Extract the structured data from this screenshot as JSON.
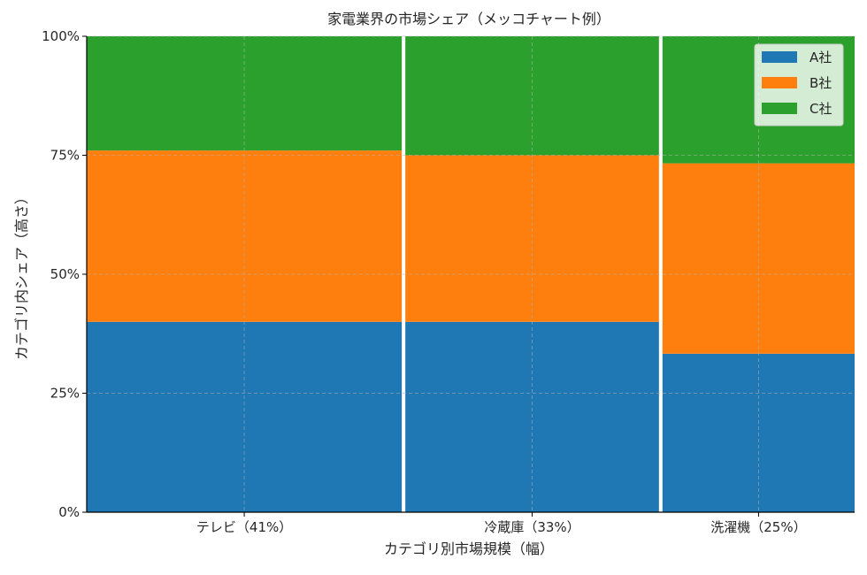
{
  "chart_data": {
    "type": "bar",
    "subtype": "mekko",
    "title": "家電業界の市場シェア（メッコチャート例）",
    "xlabel": "カテゴリ別市場規模（幅）",
    "ylabel": "カテゴリ内シェア（高さ）",
    "ylim": [
      0,
      1
    ],
    "yticks": [
      "0%",
      "25%",
      "50%",
      "75%",
      "100%"
    ],
    "grid": true,
    "legend_position": "top-right",
    "categories": [
      {
        "name": "テレビ",
        "tick_label": "テレビ（41%）",
        "width": 0.41
      },
      {
        "name": "冷蔵庫",
        "tick_label": "冷蔵庫（33%）",
        "width": 0.33
      },
      {
        "name": "洗濯機",
        "tick_label": "洗濯機（25%）",
        "width": 0.25
      }
    ],
    "series": [
      {
        "name": "A社",
        "color": "#1f77b4",
        "values": [
          0.4,
          0.4,
          0.333
        ]
      },
      {
        "name": "B社",
        "color": "#ff7f0e",
        "values": [
          0.36,
          0.35,
          0.4
        ]
      },
      {
        "name": "C社",
        "color": "#2ca02c",
        "values": [
          0.24,
          0.25,
          0.267
        ]
      }
    ]
  }
}
